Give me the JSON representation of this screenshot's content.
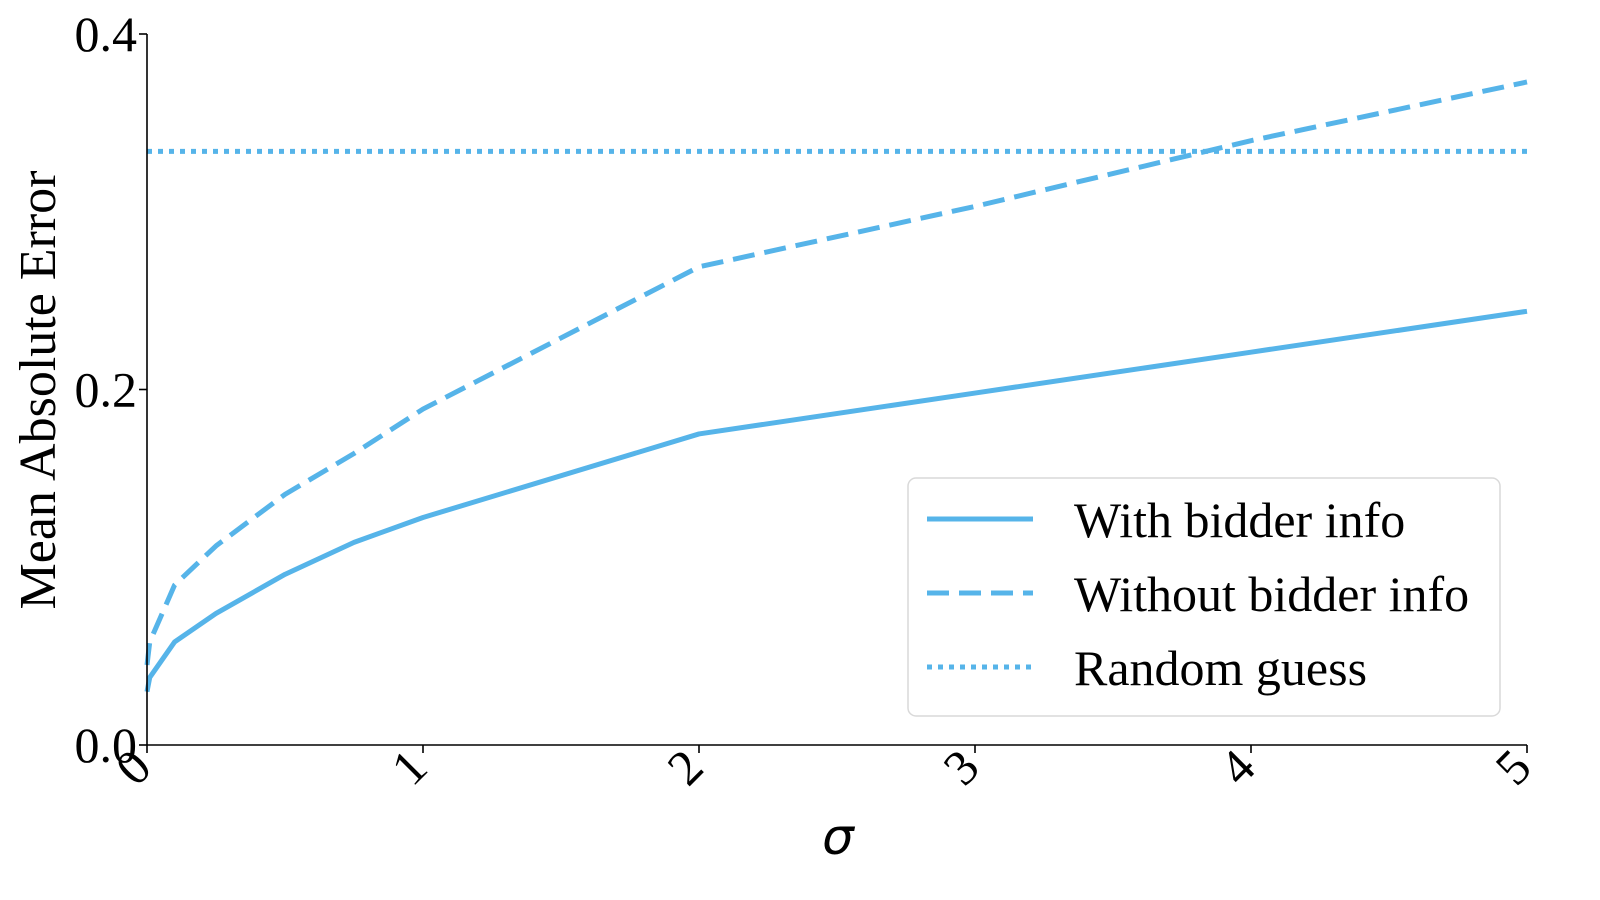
{
  "chart_data": {
    "type": "line",
    "xlabel": "σ",
    "ylabel": "Mean Absolute Error",
    "xlim": [
      0,
      5
    ],
    "ylim": [
      0,
      0.4
    ],
    "x_ticks": [
      0,
      1,
      2,
      3,
      4,
      5
    ],
    "x_tick_labels": [
      "0",
      "1",
      "2",
      "3",
      "4",
      "5"
    ],
    "y_ticks": [
      0.0,
      0.2,
      0.4
    ],
    "y_tick_labels": [
      "0.0",
      "0.2",
      "0.4"
    ],
    "grid": false,
    "legend_position": "lower-right",
    "color": "#56b4e9",
    "series": [
      {
        "name": "With bidder info",
        "style": "solid",
        "x": [
          0,
          0.01,
          0.1,
          0.25,
          0.5,
          0.75,
          1.0,
          2.0,
          3.0,
          4.0,
          5.0
        ],
        "values": [
          0.03,
          0.038,
          0.058,
          0.074,
          0.096,
          0.114,
          0.128,
          0.175,
          0.198,
          0.221,
          0.244
        ]
      },
      {
        "name": "Without bidder info",
        "style": "dashed",
        "x": [
          0,
          0.01,
          0.1,
          0.25,
          0.5,
          0.75,
          1.0,
          2.0,
          3.0,
          4.0,
          5.0
        ],
        "values": [
          0.045,
          0.058,
          0.09,
          0.112,
          0.141,
          0.164,
          0.189,
          0.269,
          0.303,
          0.34,
          0.373
        ]
      },
      {
        "name": "Random guess",
        "style": "dotted",
        "x": [
          0,
          5
        ],
        "values": [
          0.334,
          0.334
        ]
      }
    ]
  }
}
